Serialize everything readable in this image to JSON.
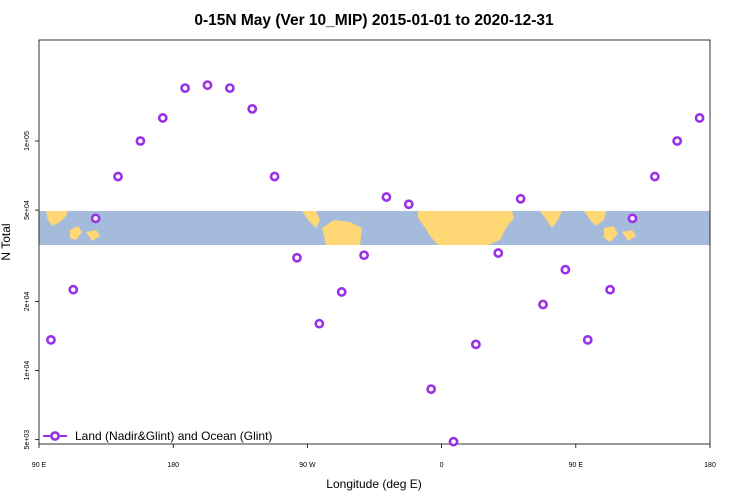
{
  "chart_data": {
    "type": "scatter",
    "title": "0-15N May (Ver 10_MIP)   2015-01-01 to 2020-12-31",
    "xlabel": "Longitude (deg E)",
    "ylabel": "N Total",
    "y_scale": "log",
    "xlim": [
      90,
      540
    ],
    "ylim_log10": [
      3.68,
      5.44
    ],
    "x_ticks": [
      {
        "value": 90,
        "label": "90 E"
      },
      {
        "value": 180,
        "label": "180"
      },
      {
        "value": 270,
        "label": "90 W"
      },
      {
        "value": 360,
        "label": "0"
      },
      {
        "value": 450,
        "label": "90 E"
      },
      {
        "value": 540,
        "label": "180"
      }
    ],
    "y_ticks": [
      {
        "value": 5000,
        "label": "5e+03"
      },
      {
        "value": 10000,
        "label": "1e+04"
      },
      {
        "value": 20000,
        "label": "2e+04"
      },
      {
        "value": 50000,
        "label": "5e+04"
      },
      {
        "value": 100000,
        "label": "1e+05"
      }
    ],
    "series": [
      {
        "name": "Land (Nadir&Glint) and Ocean (Glint)",
        "color": "#9b30e6",
        "points": [
          {
            "x": 98,
            "y": 13600
          },
          {
            "x": 113,
            "y": 22500
          },
          {
            "x": 128,
            "y": 46000
          },
          {
            "x": 143,
            "y": 70000
          },
          {
            "x": 158,
            "y": 100000
          },
          {
            "x": 173,
            "y": 126000
          },
          {
            "x": 188,
            "y": 170000
          },
          {
            "x": 203,
            "y": 175000
          },
          {
            "x": 218,
            "y": 170000
          },
          {
            "x": 233,
            "y": 138000
          },
          {
            "x": 248,
            "y": 70000
          },
          {
            "x": 263,
            "y": 31000
          },
          {
            "x": 278,
            "y": 16000
          },
          {
            "x": 293,
            "y": 22000
          },
          {
            "x": 308,
            "y": 31800
          },
          {
            "x": 323,
            "y": 57000
          },
          {
            "x": 338,
            "y": 53000
          },
          {
            "x": 353,
            "y": 8300
          },
          {
            "x": 368,
            "y": 4900
          },
          {
            "x": 383,
            "y": 13000
          },
          {
            "x": 398,
            "y": 32500
          },
          {
            "x": 413,
            "y": 56000
          },
          {
            "x": 428,
            "y": 19400
          },
          {
            "x": 443,
            "y": 27500
          },
          {
            "x": 458,
            "y": 13600
          },
          {
            "x": 473,
            "y": 22500
          },
          {
            "x": 488,
            "y": 46000
          },
          {
            "x": 503,
            "y": 70000
          },
          {
            "x": 518,
            "y": 100000
          },
          {
            "x": 533,
            "y": 126000
          }
        ]
      }
    ],
    "legend_position": "bottom-left",
    "background_map_band": {
      "lat_range": "0-15N",
      "land_color": "#ffd775",
      "ocean_color": "#a5bbdc"
    }
  }
}
